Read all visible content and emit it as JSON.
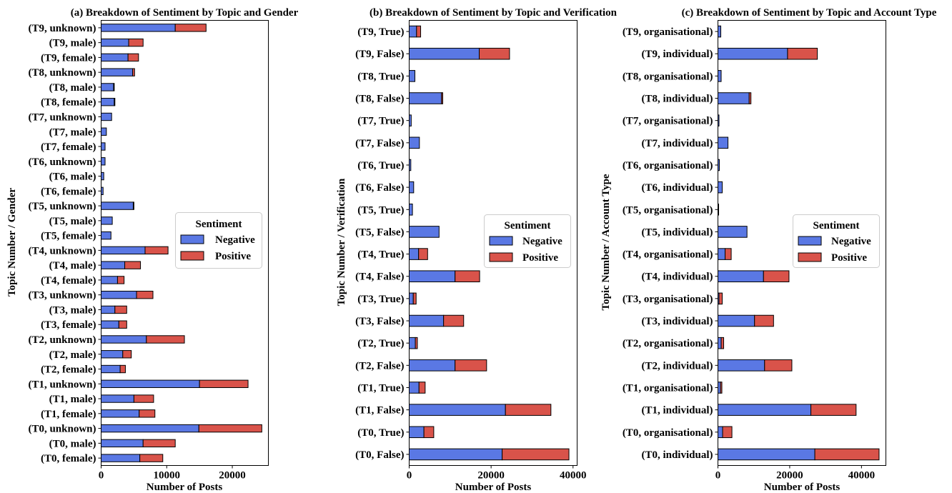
{
  "colors": {
    "Negative": "#5a78e4",
    "Positive": "#d9534a"
  },
  "chart_data": [
    {
      "type": "bar",
      "orientation": "horizontal",
      "stacked": true,
      "title": "(a) Breakdown of Sentiment by Topic and Gender",
      "xlabel": "Number of Posts",
      "ylabel": "Topic Number / Gender",
      "xlim": [
        0,
        25500
      ],
      "xticks": [
        0,
        10000,
        20000
      ],
      "legend": {
        "title": "Sentiment",
        "placement": "center-right"
      },
      "categories": [
        "(T0, female)",
        "(T0, male)",
        "(T0, unknown)",
        "(T1, female)",
        "(T1, male)",
        "(T1, unknown)",
        "(T2, female)",
        "(T2, male)",
        "(T2, unknown)",
        "(T3, female)",
        "(T3, male)",
        "(T3, unknown)",
        "(T4, female)",
        "(T4, male)",
        "(T4, unknown)",
        "(T5, female)",
        "(T5, male)",
        "(T5, unknown)",
        "(T6, female)",
        "(T6, male)",
        "(T6, unknown)",
        "(T7, female)",
        "(T7, male)",
        "(T7, unknown)",
        "(T8, female)",
        "(T8, male)",
        "(T8, unknown)",
        "(T9, female)",
        "(T9, male)",
        "(T9, unknown)"
      ],
      "series": [
        {
          "name": "Negative",
          "values": [
            5900,
            6400,
            14900,
            5800,
            5000,
            15000,
            2900,
            3300,
            6900,
            2700,
            2100,
            5400,
            2500,
            3600,
            6700,
            1500,
            1700,
            4900,
            300,
            400,
            600,
            600,
            800,
            1600,
            2000,
            1900,
            4800,
            4100,
            4200,
            11300
          ]
        },
        {
          "name": "Positive",
          "values": [
            3500,
            4900,
            9600,
            2400,
            3000,
            7400,
            800,
            1300,
            5800,
            1200,
            1800,
            2500,
            1000,
            2400,
            3500,
            0,
            0,
            100,
            0,
            0,
            0,
            0,
            0,
            0,
            100,
            100,
            300,
            1600,
            2200,
            4700
          ]
        }
      ]
    },
    {
      "type": "bar",
      "orientation": "horizontal",
      "stacked": true,
      "title": "(b) Breakdown of Sentiment by Topic and Verification",
      "xlabel": "Number of Posts",
      "ylabel": "Topic Number / Verification",
      "xlim": [
        0,
        41000
      ],
      "xticks": [
        0,
        20000,
        40000
      ],
      "legend": {
        "title": "Sentiment",
        "placement": "center-right"
      },
      "categories": [
        "(T0, False)",
        "(T0, True)",
        "(T1, False)",
        "(T1, True)",
        "(T2, False)",
        "(T2, True)",
        "(T3, False)",
        "(T3, True)",
        "(T4, False)",
        "(T4, True)",
        "(T5, False)",
        "(T5, True)",
        "(T6, False)",
        "(T6, True)",
        "(T7, False)",
        "(T7, True)",
        "(T8, False)",
        "(T8, True)",
        "(T9, False)",
        "(T9, True)"
      ],
      "series": [
        {
          "name": "Negative",
          "values": [
            22700,
            3600,
            23500,
            2400,
            11200,
            1500,
            8400,
            1000,
            11200,
            2300,
            7300,
            800,
            1100,
            400,
            2500,
            500,
            7900,
            1400,
            17100,
            1800
          ]
        },
        {
          "name": "Positive",
          "values": [
            16300,
            2400,
            11100,
            1500,
            7700,
            500,
            4900,
            700,
            6000,
            2200,
            0,
            0,
            0,
            0,
            0,
            0,
            300,
            0,
            7400,
            1000
          ]
        }
      ]
    },
    {
      "type": "bar",
      "orientation": "horizontal",
      "stacked": true,
      "title": "(c) Breakdown of Sentiment by Topic and Account Type",
      "xlabel": "Number of Posts",
      "ylabel": "Topic Number / Account Type",
      "xlim": [
        0,
        46800
      ],
      "xticks": [
        0,
        20000,
        40000
      ],
      "legend": {
        "title": "Sentiment",
        "placement": "center-right"
      },
      "categories": [
        "(T0, individual)",
        "(T0, organisational)",
        "(T1, individual)",
        "(T1, organisational)",
        "(T2, individual)",
        "(T2, organisational)",
        "(T3, individual)",
        "(T3, organisational)",
        "(T4, individual)",
        "(T4, organisational)",
        "(T5, individual)",
        "(T5, organisational)",
        "(T6, individual)",
        "(T6, organisational)",
        "(T7, individual)",
        "(T7, organisational)",
        "(T8, individual)",
        "(T8, organisational)",
        "(T9, individual)",
        "(T9, organisational)"
      ],
      "series": [
        {
          "name": "Negative",
          "values": [
            27000,
            1300,
            25900,
            700,
            13000,
            900,
            10200,
            300,
            12700,
            2000,
            8100,
            200,
            1200,
            400,
            2800,
            300,
            8700,
            900,
            19400,
            800
          ]
        },
        {
          "name": "Positive",
          "values": [
            17900,
            2600,
            12600,
            400,
            7600,
            700,
            5300,
            900,
            7100,
            1700,
            0,
            0,
            0,
            0,
            0,
            0,
            500,
            0,
            8300,
            0
          ]
        }
      ]
    }
  ]
}
